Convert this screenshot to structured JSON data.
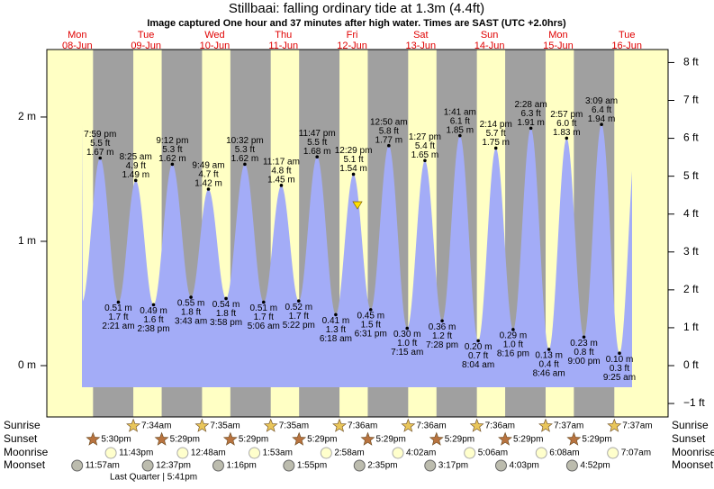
{
  "chart_data": {
    "type": "tide",
    "title": "Stillbaai: falling  ordinary tide at 1.3m (4.4ft)",
    "subtitle": "Image captured One hour and 37 minutes after high water. Times are SAST (UTC +2.0hrs)",
    "days": [
      {
        "weekday": "Mon",
        "date": "08-Jun"
      },
      {
        "weekday": "Tue",
        "date": "09-Jun"
      },
      {
        "weekday": "Wed",
        "date": "10-Jun"
      },
      {
        "weekday": "Thu",
        "date": "11-Jun"
      },
      {
        "weekday": "Fri",
        "date": "12-Jun"
      },
      {
        "weekday": "Sat",
        "date": "13-Jun"
      },
      {
        "weekday": "Sun",
        "date": "14-Jun"
      },
      {
        "weekday": "Mon",
        "date": "15-Jun"
      },
      {
        "weekday": "Tue",
        "date": "16-Jun"
      }
    ],
    "ylim": [
      -0.413,
      2.543
    ],
    "yticks": [
      {
        "value": 0,
        "label": "0 m"
      },
      {
        "value": 1,
        "label": "1 m"
      },
      {
        "value": 2,
        "label": "2 m"
      }
    ],
    "y2lim": [
      -1.355,
      8.343
    ],
    "y2ticks": [
      {
        "value": -1,
        "label": "−1 ft"
      },
      {
        "value": 0,
        "label": "0 ft"
      },
      {
        "value": 1,
        "label": "1 ft"
      },
      {
        "value": 2,
        "label": "2 ft"
      },
      {
        "value": 3,
        "label": "3 ft"
      },
      {
        "value": 4,
        "label": "4 ft"
      },
      {
        "value": 5,
        "label": "5 ft"
      },
      {
        "value": 6,
        "label": "6 ft"
      },
      {
        "value": 7,
        "label": "7 ft"
      },
      {
        "value": 8,
        "label": "8 ft"
      }
    ],
    "color": "#a3acf7",
    "tides": [
      {
        "time": "7:59 pm",
        "height": 1.67,
        "height_label": "1.67 m",
        "feet_label": "5.5 ft"
      },
      {
        "time": "2:21 am",
        "height": 0.51,
        "height_label": "0.51 m",
        "feet_label": "1.7 ft"
      },
      {
        "time": "8:25 am",
        "height": 1.49,
        "height_label": "1.49 m",
        "feet_label": "4.9 ft"
      },
      {
        "time": "2:38 pm",
        "height": 0.49,
        "height_label": "0.49 m",
        "feet_label": "1.6 ft"
      },
      {
        "time": "9:12 pm",
        "height": 1.62,
        "height_label": "1.62 m",
        "feet_label": "5.3 ft"
      },
      {
        "time": "3:43 am",
        "height": 0.55,
        "height_label": "0.55 m",
        "feet_label": "1.8 ft"
      },
      {
        "time": "9:49 am",
        "height": 1.42,
        "height_label": "1.42 m",
        "feet_label": "4.7 ft"
      },
      {
        "time": "3:58 pm",
        "height": 0.54,
        "height_label": "0.54 m",
        "feet_label": "1.8 ft"
      },
      {
        "time": "10:32 pm",
        "height": 1.62,
        "height_label": "1.62 m",
        "feet_label": "5.3 ft"
      },
      {
        "time": "5:06 am",
        "height": 0.51,
        "height_label": "0.51 m",
        "feet_label": "1.7 ft"
      },
      {
        "time": "11:17 am",
        "height": 1.45,
        "height_label": "1.45 m",
        "feet_label": "4.8 ft"
      },
      {
        "time": "5:22 pm",
        "height": 0.52,
        "height_label": "0.52 m",
        "feet_label": "1.7 ft"
      },
      {
        "time": "11:47 pm",
        "height": 1.68,
        "height_label": "1.68 m",
        "feet_label": "5.5 ft"
      },
      {
        "time": "6:18 am",
        "height": 0.41,
        "height_label": "0.41 m",
        "feet_label": "1.3 ft"
      },
      {
        "time": "12:29 pm",
        "height": 1.54,
        "height_label": "1.54 m",
        "feet_label": "5.1 ft"
      },
      {
        "time": "6:31 pm",
        "height": 0.45,
        "height_label": "0.45 m",
        "feet_label": "1.5 ft"
      },
      {
        "time": "12:50 am",
        "height": 1.77,
        "height_label": "1.77 m",
        "feet_label": "5.8 ft"
      },
      {
        "time": "7:15 am",
        "height": 0.3,
        "height_label": "0.30 m",
        "feet_label": "1.0 ft"
      },
      {
        "time": "1:27 pm",
        "height": 1.65,
        "height_label": "1.65 m",
        "feet_label": "5.4 ft"
      },
      {
        "time": "7:28 pm",
        "height": 0.36,
        "height_label": "0.36 m",
        "feet_label": "1.2 ft"
      },
      {
        "time": "1:41 am",
        "height": 1.85,
        "height_label": "1.85 m",
        "feet_label": "6.1 ft"
      },
      {
        "time": "8:04 am",
        "height": 0.2,
        "height_label": "0.20 m",
        "feet_label": "0.7 ft"
      },
      {
        "time": "2:14 pm",
        "height": 1.75,
        "height_label": "1.75 m",
        "feet_label": "5.7 ft"
      },
      {
        "time": "8:16 pm",
        "height": 0.29,
        "height_label": "0.29 m",
        "feet_label": "1.0 ft"
      },
      {
        "time": "2:28 am",
        "height": 1.91,
        "height_label": "1.91 m",
        "feet_label": "6.3 ft"
      },
      {
        "time": "8:46 am",
        "height": 0.13,
        "height_label": "0.13 m",
        "feet_label": "0.4 ft"
      },
      {
        "time": "2:57 pm",
        "height": 1.83,
        "height_label": "1.83 m",
        "feet_label": "6.0 ft"
      },
      {
        "time": "9:00 pm",
        "height": 0.23,
        "height_label": "0.23 m",
        "feet_label": "0.8 ft"
      },
      {
        "time": "3:09 am",
        "height": 1.94,
        "height_label": "1.94 m",
        "feet_label": "6.4 ft"
      },
      {
        "time": "9:25 am",
        "height": 0.1,
        "height_label": "0.10 m",
        "feet_label": "0.3 ft"
      }
    ],
    "sunset": {
      "label": "Sunset",
      "times": [
        "5:30pm",
        "5:29pm",
        "5:29pm",
        "5:29pm",
        "5:29pm",
        "5:29pm",
        "5:29pm",
        "5:29pm"
      ]
    },
    "sunrise": {
      "label": "Sunrise",
      "times": [
        "7:34am",
        "7:35am",
        "7:35am",
        "7:36am",
        "7:36am",
        "7:36am",
        "7:37am",
        "7:37am"
      ]
    },
    "moonrise": {
      "label": "Moonrise",
      "times": [
        "11:43pm",
        "12:48am",
        "1:53am",
        "2:58am",
        "4:02am",
        "5:06am",
        "6:08am",
        "7:07am"
      ]
    },
    "moonset": {
      "label": "Moonset",
      "times": [
        "11:57am",
        "12:37pm",
        "1:16pm",
        "1:55pm",
        "2:35pm",
        "3:17pm",
        "4:03pm",
        "4:52pm"
      ]
    },
    "moon_phase": "Last Quarter | 5:41pm"
  }
}
